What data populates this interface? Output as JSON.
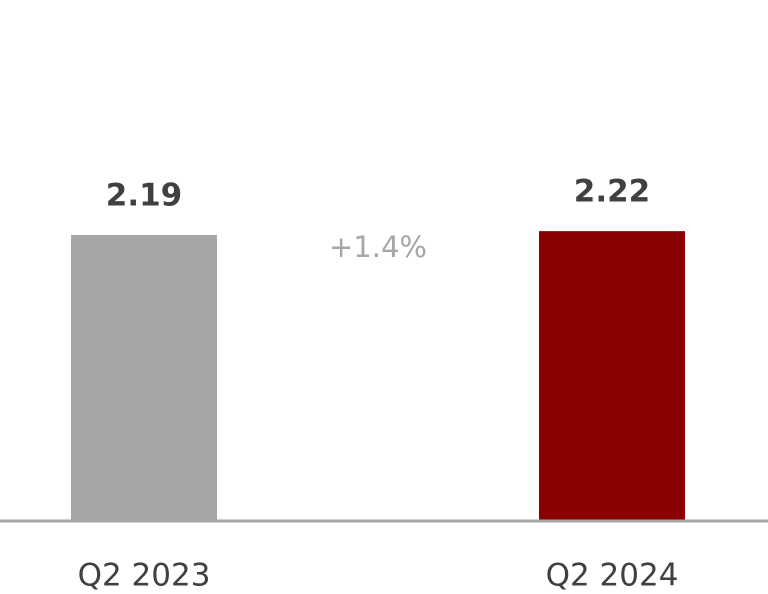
{
  "chart_data": {
    "type": "bar",
    "categories": [
      "Q2 2023",
      "Q2 2024"
    ],
    "values": [
      2.19,
      2.22
    ],
    "colors": [
      "#a6a6a6",
      "#8b0000"
    ],
    "annotation": "+1.4%",
    "ylim": [
      0,
      3.5
    ]
  }
}
